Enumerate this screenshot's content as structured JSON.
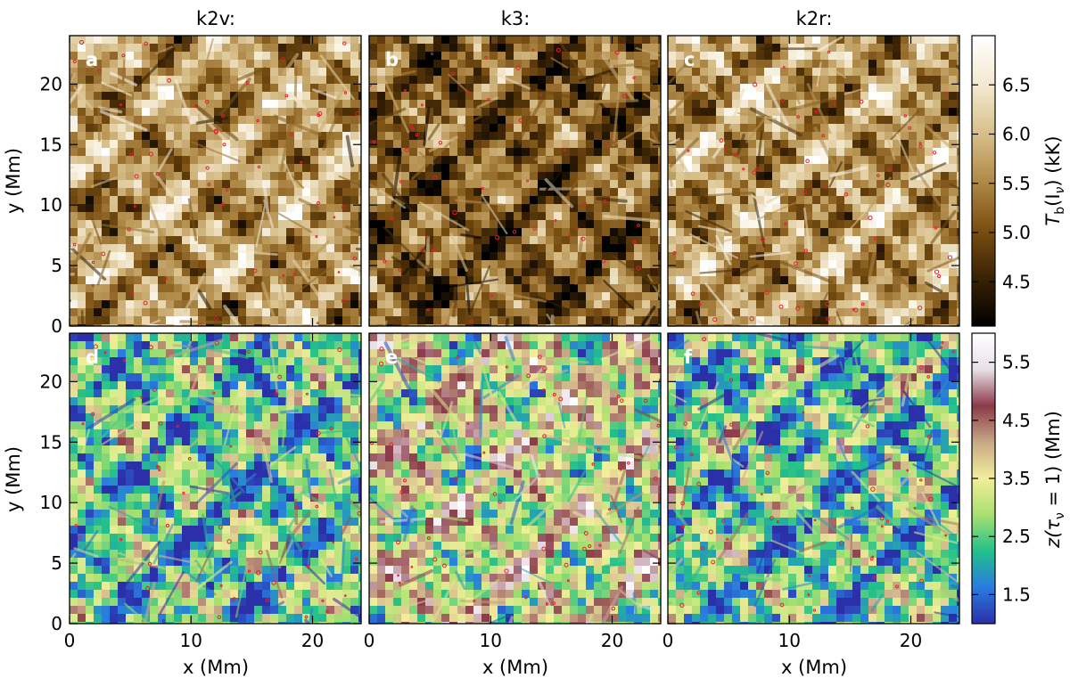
{
  "chart_data": {
    "type": "heatmap",
    "column_titles": [
      "k2v:",
      "k3:",
      "k2r:"
    ],
    "panel_labels": [
      "a",
      "b",
      "c",
      "d",
      "e",
      "f"
    ],
    "xlabel": "x (Mm)",
    "ylabel": "y (Mm)",
    "xlim": [
      0,
      24
    ],
    "ylim": [
      0,
      24
    ],
    "xticks": [
      0,
      10,
      20
    ],
    "yticks": [
      0,
      5,
      10,
      15,
      20
    ],
    "xticklabels": [
      "0",
      "10",
      "20"
    ],
    "yticklabels": [
      "0",
      "5",
      "10",
      "15",
      "20"
    ],
    "rows": [
      {
        "quantity": "brightness temperature",
        "colorbar_label_main": "T",
        "colorbar_label_sub": "b",
        "colorbar_label_rest": "(I",
        "colorbar_label_sub2": "ν",
        "colorbar_label_end": ") (kK)",
        "clim": [
          4.05,
          7.0
        ],
        "colorbar_ticks": [
          4.5,
          5.0,
          5.5,
          6.0,
          6.5
        ],
        "colorbar_ticklabels": [
          "4.5",
          "5.0",
          "5.5",
          "6.0",
          "6.5"
        ],
        "colormap": [
          "#000000",
          "#3a2305",
          "#7a4f12",
          "#b08a48",
          "#d8c08c",
          "#f4ead2",
          "#ffffff"
        ],
        "panel_mean_level": [
          0.55,
          0.35,
          0.55
        ]
      },
      {
        "quantity": "height of optical depth unity",
        "colorbar_label_main": "z(τ",
        "colorbar_label_sub": "ν",
        "colorbar_label_rest": " = 1) (Mm)",
        "clim": [
          1.0,
          6.0
        ],
        "colorbar_ticks": [
          1.5,
          2.5,
          3.5,
          4.5,
          5.5
        ],
        "colorbar_ticklabels": [
          "1.5",
          "2.5",
          "3.5",
          "4.5",
          "5.5"
        ],
        "colormap": [
          "#2b2fa8",
          "#2a7be0",
          "#22c08a",
          "#a8e070",
          "#f2ee9a",
          "#c8a888",
          "#8a3a48",
          "#e8e0e8",
          "#ffffff"
        ],
        "panel_mean_level": [
          0.3,
          0.5,
          0.3
        ]
      }
    ]
  }
}
